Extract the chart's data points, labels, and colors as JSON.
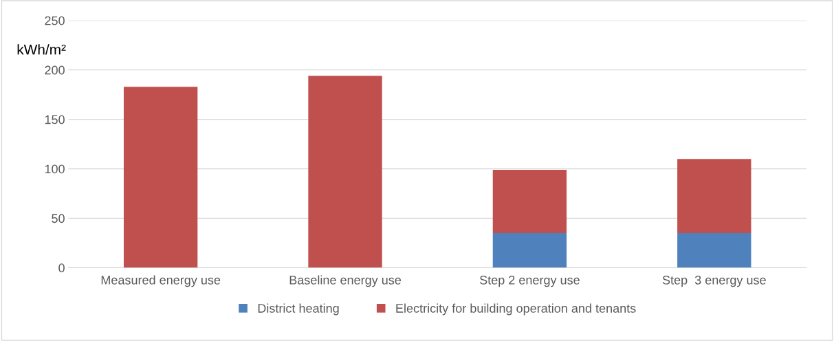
{
  "chart_data": {
    "type": "bar",
    "stacked": true,
    "ylabel": "kWh/m²",
    "categories": [
      "Measured energy use",
      "Baseline energy use",
      "Step 2 energy use",
      "Step  3 energy use"
    ],
    "series": [
      {
        "name": "District heating",
        "color": "#4f81bd",
        "values": [
          0,
          0,
          35,
          35
        ]
      },
      {
        "name": "Electricity for building operation and tenants",
        "color": "#c0504d",
        "values": [
          183,
          194,
          64,
          75
        ]
      }
    ],
    "ylim": [
      0,
      250
    ],
    "yticks": [
      0,
      50,
      100,
      150,
      200,
      250
    ],
    "grid": "y",
    "legend": "bottom"
  }
}
